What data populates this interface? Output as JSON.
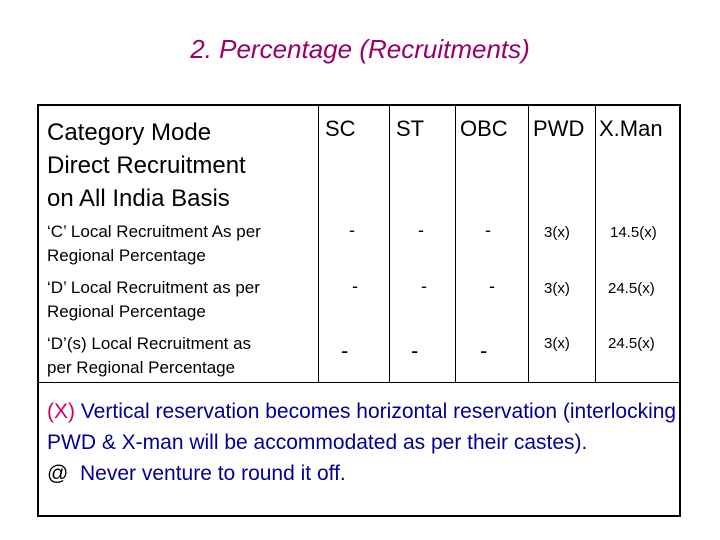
{
  "title": "2. Percentage (Recruitments)",
  "headers": {
    "category": [
      "Category Mode",
      "Direct Recruitment",
      "on All India Basis"
    ],
    "sc": "SC",
    "st": "ST",
    "obc": "OBC",
    "pwd": "PWD",
    "xman": "X.Man"
  },
  "rows": [
    {
      "label": [
        "‘C’ Local Recruitment As per",
        "Regional Percentage"
      ],
      "sc": "-",
      "st": "-",
      "obc": "-",
      "pwd": "3(x)",
      "xman": "14.5(x)"
    },
    {
      "label": [
        "‘D’ Local Recruitment as per",
        "Regional Percentage"
      ],
      "sc": "-",
      "st": "-",
      "obc": "-",
      "pwd": "3(x)",
      "xman": "24.5(x)"
    },
    {
      "label": [
        "‘D’(s) Local Recruitment as",
        "per Regional Percentage"
      ],
      "sc": "-",
      "st": "-",
      "obc": "-",
      "pwd": "3(x)",
      "xman": "24.5(x)"
    }
  ],
  "notes": {
    "x_marker": "(X)",
    "x_text": " Vertical reservation becomes horizontal reservation (interlocking PWD & X-man will be accommodated as per their castes).",
    "at_marker": "@",
    "at_text": "  Never venture to round it off."
  },
  "colors": {
    "title": "#990066",
    "notes": "#000099",
    "marker": "#cc0066"
  }
}
